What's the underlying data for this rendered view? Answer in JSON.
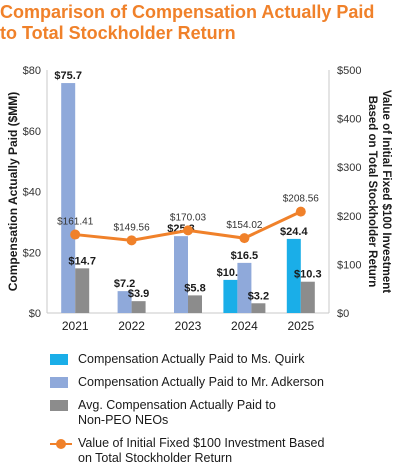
{
  "title": {
    "line1": "Comparison of Compensation Actually Paid",
    "line2": "to Total Stockholder Return"
  },
  "colors": {
    "title": "#f0812a",
    "quirk": "#1aaee8",
    "adkerson": "#8fa9da",
    "neos": "#8c8c8c",
    "tsr": "#f0812a",
    "axis": "#c8c8c8"
  },
  "chart_data": {
    "type": "bar",
    "categories": [
      "2021",
      "2022",
      "2023",
      "2024",
      "2025"
    ],
    "ylabel": "Compensation Actually Paid ($MM)",
    "ylim": [
      0,
      80
    ],
    "yticks": [
      "$0",
      "$20",
      "$40",
      "$60",
      "$80"
    ],
    "y2label_line1": "Value of Initial Fixed $100 Investment",
    "y2label_line2": "Based on Total Stockholder Return",
    "y2lim": [
      0,
      500
    ],
    "y2ticks": [
      "$0",
      "$100",
      "$200",
      "$300",
      "$400",
      "$500"
    ],
    "series": [
      {
        "name": "Compensation Actually Paid to Ms. Quirk",
        "color": "#1aaee8",
        "values": [
          null,
          null,
          null,
          10.9,
          24.4
        ],
        "labels": [
          "",
          "",
          "",
          "$10.9",
          "$24.4"
        ]
      },
      {
        "name": "Compensation Actually Paid to Mr. Adkerson",
        "color": "#8fa9da",
        "values": [
          75.7,
          7.2,
          25.3,
          16.5,
          null
        ],
        "labels": [
          "$75.7",
          "$7.2",
          "$25.3",
          "$16.5",
          ""
        ]
      },
      {
        "name": "Avg. Compensation Actually Paid to Non-PEO NEOs",
        "color": "#8c8c8c",
        "values": [
          14.7,
          3.9,
          5.8,
          3.2,
          10.3
        ],
        "labels": [
          "$14.7",
          "$3.9",
          "$5.8",
          "$3.2",
          "$10.3"
        ]
      }
    ],
    "line_series": {
      "name": "Value of Initial Fixed $100 Investment Based on Total Stockholder Return",
      "color": "#f0812a",
      "axis": "right",
      "values": [
        161.41,
        149.56,
        170.03,
        154.02,
        208.56
      ],
      "labels": [
        "$161.41",
        "$149.56",
        "$170.03",
        "$154.02",
        "$208.56"
      ]
    }
  },
  "legend": [
    {
      "line1": "Compensation Actually Paid to Ms. Quirk",
      "line2": ""
    },
    {
      "line1": "Compensation Actually Paid to Mr. Adkerson",
      "line2": ""
    },
    {
      "line1": "Avg. Compensation Actually Paid to",
      "line2": "Non-PEO NEOs"
    },
    {
      "line1": "Value of Initial Fixed $100 Investment Based",
      "line2": "on Total Stockholder Return"
    }
  ]
}
